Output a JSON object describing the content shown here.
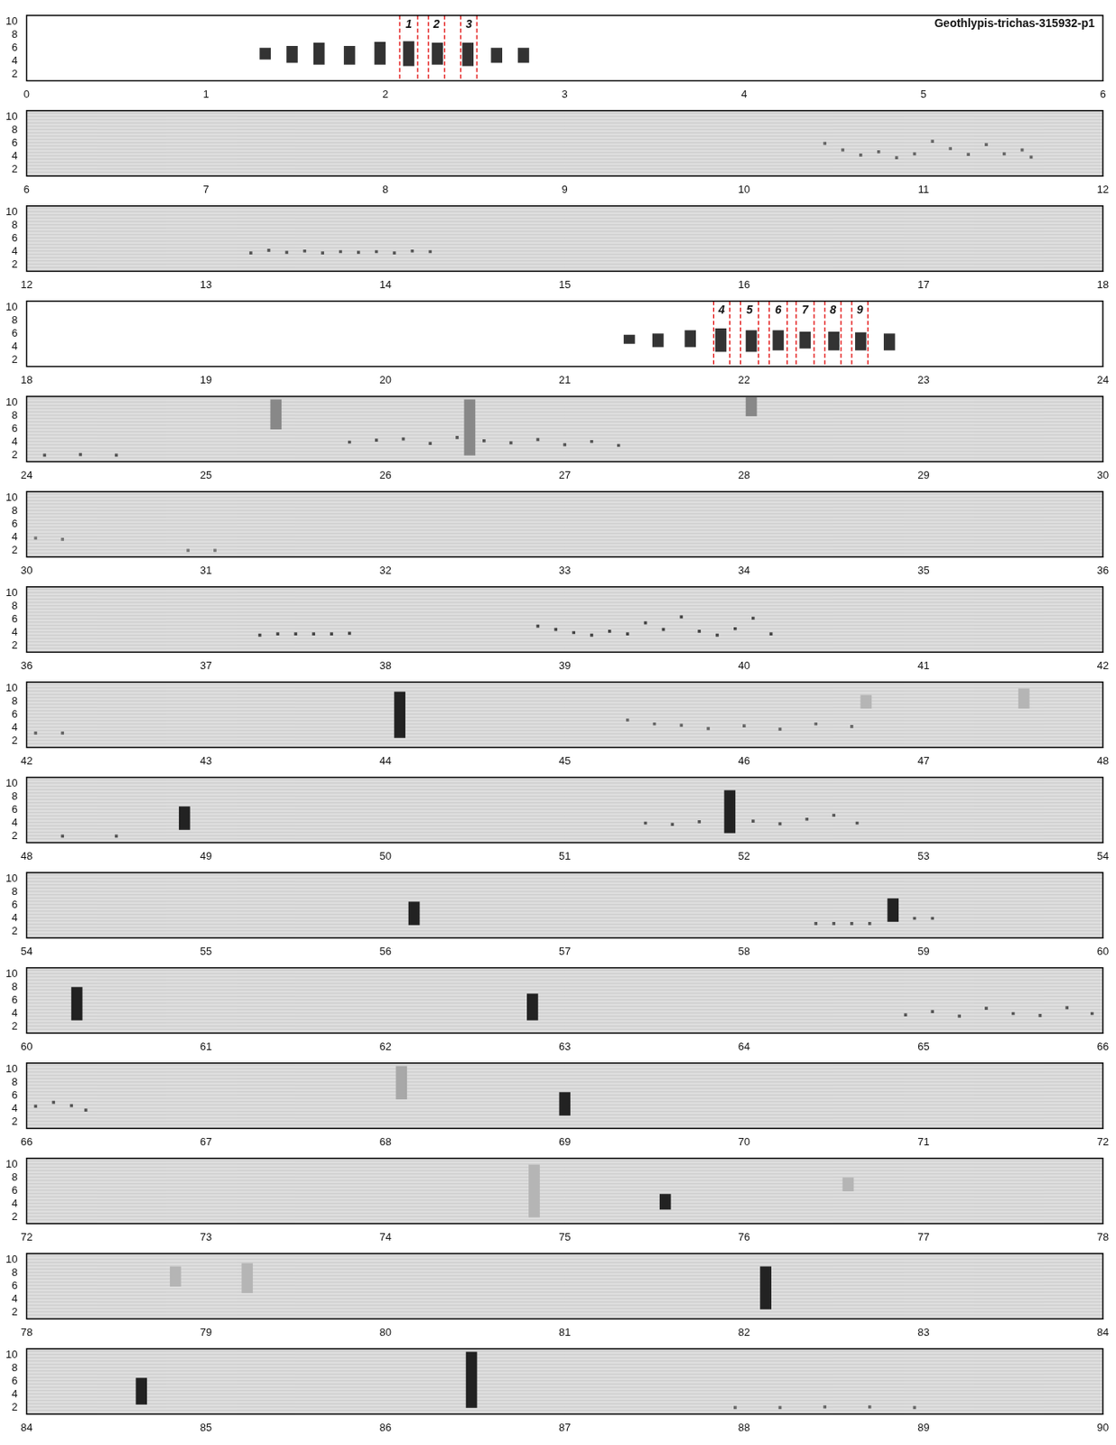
{
  "chart_data": [
    {
      "type": "scatter",
      "title": "Geothlypis-trichas-315932-p1",
      "xlim": [
        0,
        6
      ],
      "xticks": [
        0,
        1,
        2,
        3,
        4,
        5,
        6
      ],
      "ylim": [
        1,
        11
      ],
      "yticks": [
        2,
        4,
        6,
        8,
        10
      ],
      "grid": false,
      "annotations": [
        {
          "x": [
            2.08,
            2.18
          ],
          "label": "1"
        },
        {
          "x": [
            2.24,
            2.33
          ],
          "label": "2"
        },
        {
          "x": [
            2.42,
            2.51
          ],
          "label": "3"
        }
      ],
      "series": [
        {
          "type": "bar",
          "color": "#333333",
          "x": [
            1.33,
            1.48,
            1.63,
            1.8,
            1.97,
            2.13,
            2.29,
            2.46,
            2.62,
            2.77
          ],
          "values": [
            [
              4.3,
              6.0
            ],
            [
              3.8,
              6.3
            ],
            [
              3.5,
              6.8
            ],
            [
              3.5,
              6.3
            ],
            [
              3.5,
              6.9
            ],
            [
              3.3,
              7.0
            ],
            [
              3.5,
              6.8
            ],
            [
              3.3,
              6.8
            ],
            [
              3.8,
              6.0
            ],
            [
              3.8,
              6.0
            ]
          ]
        }
      ]
    },
    {
      "type": "scatter",
      "xlim": [
        6,
        12
      ],
      "xticks": [
        6,
        7,
        8,
        9,
        10,
        11,
        12
      ],
      "ylim": [
        1,
        11
      ],
      "yticks": [
        2,
        4,
        6,
        8,
        10
      ],
      "grid": false,
      "series": [
        {
          "type": "scatter",
          "color": "#666666",
          "x": [
            10.45,
            10.55,
            10.65,
            10.75,
            10.85,
            10.95,
            11.05,
            11.15,
            11.25,
            11.35,
            11.45,
            11.55,
            11.6
          ],
          "values": [
            6.0,
            5.0,
            4.2,
            4.7,
            3.8,
            4.4,
            6.3,
            5.2,
            4.3,
            5.8,
            4.4,
            5.0,
            3.9
          ]
        }
      ]
    },
    {
      "type": "scatter",
      "xlim": [
        12,
        18
      ],
      "xticks": [
        12,
        13,
        14,
        15,
        16,
        17,
        18
      ],
      "ylim": [
        1,
        11
      ],
      "yticks": [
        2,
        4,
        6,
        8,
        10
      ],
      "grid": false,
      "series": [
        {
          "type": "scatter",
          "color": "#555555",
          "x": [
            13.25,
            13.35,
            13.45,
            13.55,
            13.65,
            13.75,
            13.85,
            13.95,
            14.05,
            14.15,
            14.25
          ],
          "values": [
            3.8,
            4.2,
            3.9,
            4.1,
            3.8,
            4.0,
            3.9,
            4.0,
            3.8,
            4.1,
            4.0
          ]
        }
      ]
    },
    {
      "type": "scatter",
      "xlim": [
        18,
        24
      ],
      "xticks": [
        18,
        19,
        20,
        21,
        22,
        23,
        24
      ],
      "ylim": [
        1,
        11
      ],
      "yticks": [
        2,
        4,
        6,
        8,
        10
      ],
      "grid": false,
      "annotations": [
        {
          "x": [
            21.83,
            21.92
          ],
          "label": "4"
        },
        {
          "x": [
            21.98,
            22.08
          ],
          "label": "5"
        },
        {
          "x": [
            22.14,
            22.24
          ],
          "label": "6"
        },
        {
          "x": [
            22.29,
            22.39
          ],
          "label": "7"
        },
        {
          "x": [
            22.45,
            22.54
          ],
          "label": "8"
        },
        {
          "x": [
            22.6,
            22.69
          ],
          "label": "9"
        }
      ],
      "series": [
        {
          "type": "bar",
          "color": "#333333",
          "x": [
            21.36,
            21.52,
            21.7,
            21.87,
            22.04,
            22.19,
            22.34,
            22.5,
            22.65,
            22.81
          ],
          "values": [
            [
              4.5,
              5.8
            ],
            [
              4.0,
              6.0
            ],
            [
              4.0,
              6.5
            ],
            [
              3.3,
              6.8
            ],
            [
              3.3,
              6.5
            ],
            [
              3.5,
              6.5
            ],
            [
              3.8,
              6.3
            ],
            [
              3.5,
              6.3
            ],
            [
              3.5,
              6.2
            ],
            [
              3.5,
              6.0
            ]
          ]
        }
      ]
    },
    {
      "type": "scatter",
      "xlim": [
        24,
        30
      ],
      "xticks": [
        24,
        25,
        26,
        27,
        28,
        29,
        30
      ],
      "ylim": [
        1,
        11
      ],
      "yticks": [
        2,
        4,
        6,
        8,
        10
      ],
      "grid": false,
      "series": [
        {
          "type": "bar",
          "color": "#888888",
          "x": [
            25.39,
            26.47,
            28.04
          ],
          "values": [
            [
              6.0,
              10.5
            ],
            [
              2.0,
              10.5
            ],
            [
              8.0,
              10.8
            ]
          ]
        },
        {
          "type": "scatter",
          "color": "#555555",
          "x": [
            24.1,
            24.3,
            24.5,
            25.8,
            25.95,
            26.1,
            26.25,
            26.4,
            26.55,
            26.7,
            26.85,
            27.0,
            27.15,
            27.3
          ],
          "values": [
            2.0,
            2.1,
            2.0,
            4.0,
            4.3,
            4.5,
            3.8,
            4.7,
            4.2,
            3.9,
            4.4,
            3.6,
            4.1,
            3.5
          ]
        }
      ]
    },
    {
      "type": "scatter",
      "xlim": [
        30,
        36
      ],
      "xticks": [
        30,
        31,
        32,
        33,
        34,
        35,
        36
      ],
      "ylim": [
        1,
        11
      ],
      "yticks": [
        2,
        4,
        6,
        8,
        10
      ],
      "grid": false,
      "series": [
        {
          "type": "scatter",
          "color": "#777777",
          "x": [
            30.05,
            30.2,
            30.9,
            31.05
          ],
          "values": [
            3.9,
            3.7,
            2.0,
            2.0
          ]
        }
      ]
    },
    {
      "type": "scatter",
      "xlim": [
        36,
        42
      ],
      "xticks": [
        36,
        37,
        38,
        39,
        40,
        41,
        42
      ],
      "ylim": [
        1,
        11
      ],
      "yticks": [
        2,
        4,
        6,
        8,
        10
      ],
      "grid": false,
      "series": [
        {
          "type": "scatter",
          "color": "#444444",
          "x": [
            37.3,
            37.4,
            37.5,
            37.6,
            37.7,
            37.8,
            38.85,
            38.95,
            39.05,
            39.15,
            39.25,
            39.35,
            39.45,
            39.55,
            39.65,
            39.75,
            39.85,
            39.95,
            40.05,
            40.15
          ],
          "values": [
            3.6,
            3.8,
            3.8,
            3.8,
            3.8,
            3.9,
            5.0,
            4.5,
            4.0,
            3.6,
            4.2,
            3.8,
            5.5,
            4.5,
            6.4,
            4.2,
            3.6,
            4.6,
            6.2,
            3.8
          ]
        }
      ]
    },
    {
      "type": "scatter",
      "xlim": [
        42,
        48
      ],
      "xticks": [
        42,
        43,
        44,
        45,
        46,
        47,
        48
      ],
      "ylim": [
        1,
        11
      ],
      "yticks": [
        2,
        4,
        6,
        8,
        10
      ],
      "grid": false,
      "series": [
        {
          "type": "bar",
          "color": "#222222",
          "x": [
            44.11
          ],
          "values": [
            [
              2.5,
              9.5
            ]
          ]
        },
        {
          "type": "bar",
          "color": "#b5b5b5",
          "x": [
            46.65,
            47.53
          ],
          "values": [
            [
              7.0,
              9.0
            ],
            [
              7.0,
              10.0
            ]
          ]
        },
        {
          "type": "scatter",
          "color": "#666666",
          "x": [
            42.05,
            42.2,
            45.35,
            45.5,
            45.65,
            45.8,
            46.0,
            46.2,
            46.4,
            46.6
          ],
          "values": [
            3.2,
            3.2,
            5.2,
            4.6,
            4.4,
            3.9,
            4.3,
            3.8,
            4.6,
            4.2
          ]
        }
      ]
    },
    {
      "type": "scatter",
      "xlim": [
        48,
        54
      ],
      "xticks": [
        48,
        49,
        50,
        51,
        52,
        53,
        54
      ],
      "ylim": [
        1,
        11
      ],
      "yticks": [
        2,
        4,
        6,
        8,
        10
      ],
      "grid": false,
      "series": [
        {
          "type": "bar",
          "color": "#222222",
          "x": [
            48.88,
            51.92
          ],
          "values": [
            [
              3.0,
              6.5
            ],
            [
              2.5,
              9.0
            ]
          ]
        },
        {
          "type": "scatter",
          "color": "#555555",
          "x": [
            48.2,
            48.5,
            51.45,
            51.6,
            51.75,
            52.05,
            52.2,
            52.35,
            52.5,
            52.63
          ],
          "values": [
            2.0,
            2.0,
            4.0,
            3.8,
            4.2,
            4.3,
            3.9,
            4.6,
            5.2,
            4.0
          ]
        }
      ]
    },
    {
      "type": "scatter",
      "xlim": [
        54,
        60
      ],
      "xticks": [
        54,
        55,
        56,
        57,
        58,
        59,
        60
      ],
      "ylim": [
        1,
        11
      ],
      "yticks": [
        2,
        4,
        6,
        8,
        10
      ],
      "grid": false,
      "series": [
        {
          "type": "bar",
          "color": "#222222",
          "x": [
            56.16,
            58.83
          ],
          "values": [
            [
              3.0,
              6.5
            ],
            [
              3.5,
              7.0
            ]
          ]
        },
        {
          "type": "scatter",
          "color": "#555555",
          "x": [
            58.4,
            58.5,
            58.6,
            58.7,
            58.95,
            59.05
          ],
          "values": [
            3.2,
            3.2,
            3.2,
            3.2,
            4.0,
            4.0
          ]
        }
      ]
    },
    {
      "type": "scatter",
      "xlim": [
        60,
        66
      ],
      "xticks": [
        60,
        61,
        62,
        63,
        64,
        65,
        66
      ],
      "ylim": [
        1,
        11
      ],
      "yticks": [
        2,
        4,
        6,
        8,
        10
      ],
      "grid": false,
      "series": [
        {
          "type": "bar",
          "color": "#222222",
          "x": [
            60.28,
            62.82
          ],
          "values": [
            [
              3.0,
              8.0
            ],
            [
              3.0,
              7.0
            ]
          ]
        },
        {
          "type": "scatter",
          "color": "#555555",
          "x": [
            64.9,
            65.05,
            65.2,
            65.35,
            65.5,
            65.65,
            65.8,
            65.94
          ],
          "values": [
            3.8,
            4.3,
            3.6,
            4.8,
            4.0,
            3.7,
            4.9,
            4.0
          ]
        }
      ]
    },
    {
      "type": "scatter",
      "xlim": [
        66,
        72
      ],
      "xticks": [
        66,
        67,
        68,
        69,
        70,
        71,
        72
      ],
      "ylim": [
        1,
        11
      ],
      "yticks": [
        2,
        4,
        6,
        8,
        10
      ],
      "grid": false,
      "series": [
        {
          "type": "bar",
          "color": "#222222",
          "x": [
            69.03
          ],
          "values": [
            [
              3.0,
              6.5
            ]
          ]
        },
        {
          "type": "bar",
          "color": "#a8a8a8",
          "x": [
            68.06
          ],
          "values": [
            [
              5.5,
              10.5
            ]
          ]
        },
        {
          "type": "scatter",
          "color": "#555555",
          "x": [
            66.05,
            66.15,
            66.25,
            66.33
          ],
          "values": [
            4.4,
            5.0,
            4.5,
            3.8
          ]
        }
      ]
    },
    {
      "type": "scatter",
      "xlim": [
        72,
        78
      ],
      "xticks": [
        72,
        73,
        74,
        75,
        76,
        77,
        78
      ],
      "ylim": [
        1,
        11
      ],
      "yticks": [
        2,
        4,
        6,
        8,
        10
      ],
      "grid": false,
      "series": [
        {
          "type": "bar",
          "color": "#222222",
          "x": [
            75.59
          ],
          "values": [
            [
              3.2,
              5.5
            ]
          ]
        },
        {
          "type": "bar",
          "color": "#b5b5b5",
          "x": [
            74.8,
            76.55
          ],
          "values": [
            [
              2.0,
              10.0
            ],
            [
              6.0,
              8.0
            ]
          ]
        }
      ]
    },
    {
      "type": "scatter",
      "xlim": [
        78,
        84
      ],
      "xticks": [
        78,
        79,
        80,
        81,
        82,
        83,
        84
      ],
      "ylim": [
        1,
        11
      ],
      "yticks": [
        2,
        4,
        6,
        8,
        10
      ],
      "grid": false,
      "series": [
        {
          "type": "bar",
          "color": "#222222",
          "x": [
            82.15
          ],
          "values": [
            [
              2.5,
              9.0
            ]
          ]
        },
        {
          "type": "bar",
          "color": "#b5b5b5",
          "x": [
            78.8,
            79.2
          ],
          "values": [
            [
              6.0,
              9.0
            ],
            [
              5.0,
              9.5
            ]
          ]
        }
      ]
    },
    {
      "type": "scatter",
      "xlim": [
        84,
        90
      ],
      "xticks": [
        84,
        85,
        86,
        87,
        88,
        89,
        90
      ],
      "ylim": [
        1,
        11
      ],
      "yticks": [
        2,
        4,
        6,
        8,
        10
      ],
      "grid": false,
      "series": [
        {
          "type": "bar",
          "color": "#222222",
          "x": [
            84.64,
            86.48
          ],
          "values": [
            [
              2.5,
              6.5
            ],
            [
              2.0,
              10.5
            ]
          ]
        },
        {
          "type": "scatter",
          "color": "#666666",
          "x": [
            87.95,
            88.2,
            88.45,
            88.7,
            88.95
          ],
          "values": [
            2.0,
            2.0,
            2.1,
            2.1,
            2.0
          ]
        }
      ]
    }
  ]
}
